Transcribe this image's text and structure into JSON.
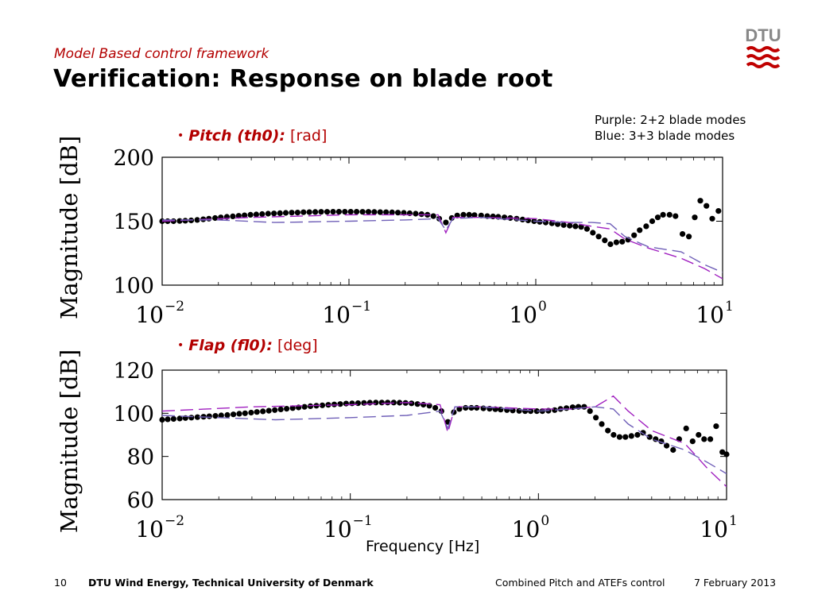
{
  "slide": {
    "supertitle": "Model Based control framework",
    "title": "Verification: Response on blade root",
    "logo_text": "DTU",
    "note_line1": "Purple: 2+2 blade modes",
    "note_line2": "Blue: 3+3 blade modes",
    "bullet1": {
      "dot": "•",
      "name": "Pitch (th0):",
      "unit": "[rad]"
    },
    "bullet2": {
      "dot": "•",
      "name": "Flap (fl0):",
      "unit": "[deg]"
    },
    "xlabel": "Frequency [Hz]",
    "footer": {
      "page": "10",
      "org": "DTU Wind Energy, Technical University of Denmark",
      "topic": "Combined Pitch and ATEFs control",
      "date": "7 February 2013"
    }
  },
  "colors": {
    "accent": "#b30000",
    "purple": "#a020c0",
    "blue": "#7060b8",
    "points": "#000000"
  },
  "chart_data": [
    {
      "type": "line",
      "ylabel": "Magnitude [dB]",
      "xscale": "log",
      "xlim": [
        0.01,
        10
      ],
      "ylim": [
        100,
        200
      ],
      "yticks": [
        100,
        150,
        200
      ],
      "xticks": [
        0.01,
        0.1,
        1,
        10
      ],
      "xtick_labels": [
        "10",
        "10",
        "10",
        "10"
      ],
      "xtick_exps": [
        "−2",
        "−1",
        "0",
        "1"
      ],
      "series": [
        {
          "style": "markers",
          "color": "#000000",
          "x": [
            0.01,
            0.0107,
            0.0115,
            0.0124,
            0.0133,
            0.0143,
            0.0154,
            0.0166,
            0.0178,
            0.0192,
            0.0206,
            0.0222,
            0.0239,
            0.0257,
            0.0276,
            0.0297,
            0.0319,
            0.0343,
            0.0369,
            0.0397,
            0.0427,
            0.0459,
            0.0494,
            0.0531,
            0.0571,
            0.0614,
            0.066,
            0.071,
            0.0764,
            0.0822,
            0.0884,
            0.095,
            0.1022,
            0.1099,
            0.1182,
            0.1271,
            0.1367,
            0.147,
            0.1581,
            0.1701,
            0.1829,
            0.1967,
            0.2115,
            0.2275,
            0.2447,
            0.2631,
            0.283,
            0.304,
            0.33,
            0.355,
            0.38,
            0.41,
            0.44,
            0.47,
            0.51,
            0.55,
            0.59,
            0.63,
            0.68,
            0.73,
            0.79,
            0.85,
            0.91,
            0.98,
            1.05,
            1.13,
            1.22,
            1.31,
            1.41,
            1.52,
            1.63,
            1.75,
            1.88,
            2.02,
            2.17,
            2.34,
            2.51,
            2.7,
            2.9,
            3.12,
            3.36,
            3.6,
            3.9,
            4.2,
            4.5,
            4.8,
            5.2,
            5.6,
            6.1,
            6.6,
            7.1,
            7.6,
            8.2,
            8.8,
            9.5
          ],
          "y": [
            150,
            150,
            150,
            150.2,
            150.4,
            150.6,
            151,
            151.5,
            152,
            152.5,
            153,
            153.4,
            153.8,
            154.2,
            154.6,
            155,
            155.3,
            155.6,
            155.9,
            156.1,
            156.3,
            156.5,
            156.7,
            156.8,
            157,
            157.1,
            157.2,
            157.3,
            157.3,
            157.4,
            157.4,
            157.4,
            157.4,
            157.4,
            157.3,
            157.3,
            157.2,
            157.1,
            157,
            156.9,
            156.7,
            156.5,
            156.2,
            155.9,
            155.5,
            155,
            154,
            152,
            149,
            152.5,
            154.5,
            155,
            155,
            154.8,
            154.5,
            154,
            153.7,
            153.4,
            153,
            152.5,
            152,
            151.3,
            150.6,
            150,
            149.5,
            149,
            148.4,
            147.7,
            147,
            146.5,
            146,
            145.5,
            144,
            141,
            138,
            135,
            132,
            133.5,
            134,
            135.5,
            139,
            143,
            146,
            150,
            153,
            155,
            155,
            154,
            140,
            138,
            153,
            166,
            162,
            152,
            158
          ]
        },
        {
          "style": "dashed",
          "color": "#a020c0",
          "x": [
            0.01,
            0.03,
            0.1,
            0.2,
            0.3,
            0.33,
            0.36,
            0.5,
            1,
            1.5,
            2,
            2.5,
            3,
            4,
            6,
            8,
            10
          ],
          "y": [
            150,
            153,
            155,
            155,
            155,
            141,
            153,
            153,
            152,
            149,
            146,
            144,
            136,
            129,
            121,
            113,
            105
          ]
        },
        {
          "style": "dashed",
          "color": "#7060b8",
          "x": [
            0.01,
            0.02,
            0.04,
            0.1,
            0.2,
            0.3,
            0.33,
            0.36,
            0.5,
            1,
            1.5,
            2,
            2.5,
            3,
            4,
            6,
            8,
            10
          ],
          "y": [
            151,
            151,
            149,
            150,
            151,
            152,
            143,
            152,
            153,
            150,
            149,
            149,
            148,
            138,
            130,
            126,
            116,
            110
          ]
        }
      ]
    },
    {
      "type": "line",
      "ylabel": "Magnitude [dB]",
      "xscale": "log",
      "xlim": [
        0.01,
        10
      ],
      "ylim": [
        60,
        120
      ],
      "yticks": [
        60,
        80,
        100,
        120
      ],
      "xticks": [
        0.01,
        0.1,
        1,
        10
      ],
      "xtick_labels": [
        "10",
        "10",
        "10",
        "10"
      ],
      "xtick_exps": [
        "−2",
        "−1",
        "0",
        "1"
      ],
      "series": [
        {
          "style": "markers",
          "color": "#000000",
          "x": [
            0.01,
            0.0107,
            0.0115,
            0.0124,
            0.0133,
            0.0143,
            0.0154,
            0.0166,
            0.0178,
            0.0192,
            0.0206,
            0.0222,
            0.0239,
            0.0257,
            0.0276,
            0.0297,
            0.0319,
            0.0343,
            0.0369,
            0.0397,
            0.0427,
            0.0459,
            0.0494,
            0.0531,
            0.0571,
            0.0614,
            0.066,
            0.071,
            0.0764,
            0.0822,
            0.0884,
            0.095,
            0.1022,
            0.1099,
            0.1182,
            0.1271,
            0.1367,
            0.147,
            0.1581,
            0.1701,
            0.1829,
            0.1967,
            0.2115,
            0.2275,
            0.2447,
            0.2631,
            0.283,
            0.305,
            0.33,
            0.355,
            0.38,
            0.41,
            0.44,
            0.47,
            0.51,
            0.55,
            0.59,
            0.63,
            0.68,
            0.73,
            0.79,
            0.85,
            0.91,
            0.98,
            1.05,
            1.13,
            1.22,
            1.31,
            1.41,
            1.52,
            1.63,
            1.75,
            1.88,
            2.02,
            2.17,
            2.34,
            2.51,
            2.7,
            2.9,
            3.12,
            3.36,
            3.6,
            3.9,
            4.2,
            4.5,
            4.8,
            5.2,
            5.6,
            6.1,
            6.6,
            7.1,
            7.6,
            8.2,
            8.8,
            9.5,
            10
          ],
          "y": [
            97,
            97.2,
            97.4,
            97.6,
            97.8,
            98,
            98.2,
            98.4,
            98.6,
            98.8,
            99,
            99.2,
            99.5,
            99.8,
            100,
            100.3,
            100.6,
            100.9,
            101.2,
            101.5,
            101.8,
            102.1,
            102.4,
            102.7,
            103,
            103.3,
            103.5,
            103.7,
            103.9,
            104.1,
            104.3,
            104.5,
            104.6,
            104.7,
            104.8,
            104.9,
            105,
            105,
            105,
            105,
            104.9,
            104.8,
            104.6,
            104.3,
            104,
            103.5,
            102.5,
            101,
            96,
            100.5,
            102,
            102.5,
            102.5,
            102.5,
            102.3,
            102.1,
            101.9,
            101.7,
            101.5,
            101.3,
            101.1,
            101,
            101,
            101,
            101,
            101.2,
            101.5,
            102,
            102.4,
            102.8,
            103,
            103,
            101,
            98,
            95,
            92,
            90,
            89,
            89,
            89.5,
            90,
            91,
            89,
            88,
            87,
            85,
            83,
            88,
            93,
            87,
            90,
            88,
            88,
            94,
            82,
            81
          ]
        },
        {
          "style": "dashed",
          "color": "#a020c0",
          "x": [
            0.01,
            0.03,
            0.1,
            0.2,
            0.3,
            0.33,
            0.36,
            0.5,
            1,
            1.5,
            2,
            2.5,
            3,
            4,
            6,
            8,
            10
          ],
          "y": [
            101,
            103,
            104,
            105,
            104,
            91,
            103,
            103,
            102,
            102,
            103,
            108,
            101,
            92,
            86,
            74,
            66
          ]
        },
        {
          "style": "dashed",
          "color": "#7060b8",
          "x": [
            0.01,
            0.02,
            0.04,
            0.1,
            0.2,
            0.3,
            0.33,
            0.36,
            0.5,
            1,
            1.5,
            2,
            2.5,
            3,
            4,
            6,
            8,
            10
          ],
          "y": [
            99,
            98,
            97,
            98,
            99,
            101,
            93,
            103,
            103,
            101,
            102,
            103,
            102,
            95,
            88,
            83,
            77,
            72
          ]
        }
      ]
    }
  ]
}
